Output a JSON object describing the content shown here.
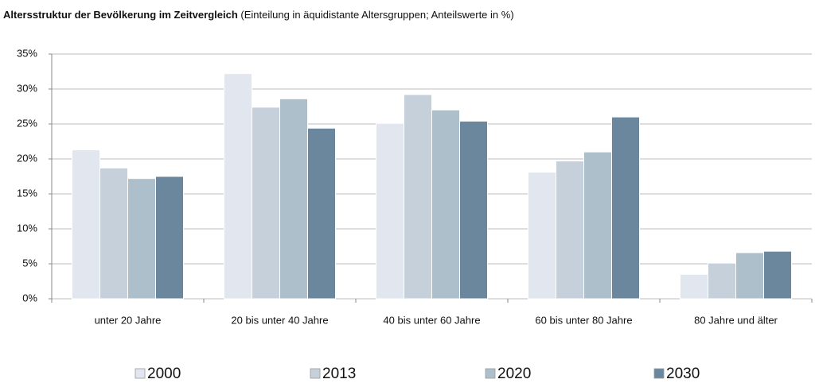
{
  "chart_data": {
    "type": "bar",
    "title": "Altersstruktur der Bevölkerung im Zeitvergleich",
    "subtitle": "(Einteilung in äquidistante Altersgruppen; Anteilswerte in %)",
    "categories": [
      "unter 20 Jahre",
      "20 bis unter 40 Jahre",
      "40 bis unter 60 Jahre",
      "60 bis unter 80 Jahre",
      "80 Jahre und älter"
    ],
    "series": [
      {
        "name": "2000",
        "color": "#e2e6ee",
        "values": [
          21.3,
          32.2,
          25.1,
          18.1,
          3.5
        ]
      },
      {
        "name": "2013",
        "color": "#c5d0da",
        "values": [
          18.7,
          27.4,
          29.2,
          19.7,
          5.1
        ]
      },
      {
        "name": "2020",
        "color": "#aebfcc",
        "values": [
          17.2,
          28.6,
          27.0,
          21.0,
          6.6
        ]
      },
      {
        "name": "2030",
        "color": "#6a879e",
        "values": [
          17.5,
          24.4,
          25.4,
          26.0,
          6.8
        ]
      }
    ],
    "ylim": [
      0,
      35
    ],
    "yticks": [
      {
        "value": 0,
        "label": "0%"
      },
      {
        "value": 5,
        "label": "5%"
      },
      {
        "value": 10,
        "label": "10%"
      },
      {
        "value": 15,
        "label": "15%"
      },
      {
        "value": 20,
        "label": "20%"
      },
      {
        "value": 25,
        "label": "25%"
      },
      {
        "value": 30,
        "label": "30%"
      },
      {
        "value": 35,
        "label": "35%"
      }
    ],
    "grid": true,
    "legend": "bottom"
  }
}
